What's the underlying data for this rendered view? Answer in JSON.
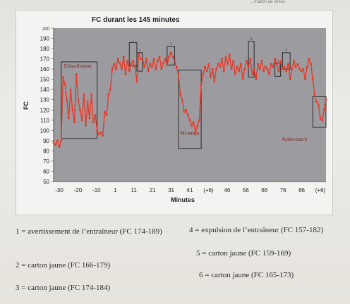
{
  "top_fragment": "…mation de stress",
  "chart_data": {
    "type": "line",
    "title": "FC durant les 145 minutes",
    "xlabel": "Minutes",
    "ylabel": "FC",
    "ylim": [
      50,
      200
    ],
    "yticks": [
      "200",
      "190",
      "180",
      "170",
      "160",
      "150",
      "140",
      "130",
      "120",
      "110",
      "100",
      "90",
      "80",
      "70",
      "60",
      "50"
    ],
    "xticks": [
      "-30",
      "-20",
      "-10",
      "1",
      "11",
      "21",
      "31",
      "41",
      "(+6)",
      "46",
      "56",
      "66",
      "76",
      "86",
      "(+6)"
    ],
    "series": [
      {
        "color": "#e63a2a",
        "x": [
          0,
          1,
          2,
          3,
          4,
          5,
          6,
          7,
          8,
          9,
          10,
          11,
          12,
          13,
          14,
          15,
          16,
          17,
          18,
          19,
          20,
          21,
          22,
          23,
          24,
          25,
          26,
          27,
          28,
          29,
          30,
          31,
          32,
          33,
          34,
          35,
          36,
          37,
          38,
          39,
          40,
          41,
          42,
          43,
          44,
          45,
          46,
          47,
          48,
          49,
          50,
          51,
          52,
          53,
          54,
          55,
          56,
          57,
          58,
          59,
          60,
          61,
          62,
          63,
          64,
          65,
          66,
          67,
          68,
          69,
          70,
          71,
          72,
          73,
          74,
          75,
          76,
          77,
          78,
          79,
          80,
          81,
          82,
          83,
          84,
          85,
          86,
          87,
          88,
          89,
          90,
          91,
          92,
          93,
          94,
          95,
          96,
          97,
          98,
          99,
          100,
          101,
          102,
          103,
          104,
          105,
          106,
          107,
          108,
          109,
          110,
          111,
          112,
          113,
          114,
          115,
          116,
          117,
          118,
          119,
          120,
          121,
          122,
          123,
          124,
          125,
          126,
          127,
          128,
          129,
          130,
          131,
          132,
          133,
          134,
          135,
          136,
          137,
          138,
          139,
          140,
          141,
          142,
          143,
          144
        ],
        "y": [
          88,
          86,
          90,
          84,
          90,
          152,
          145,
          130,
          112,
          140,
          120,
          108,
          155,
          130,
          120,
          110,
          135,
          105,
          128,
          112,
          135,
          108,
          115,
          100,
          96,
          98,
          95,
          118,
          115,
          135,
          140,
          160,
          165,
          160,
          170,
          166,
          160,
          172,
          155,
          168,
          158,
          165,
          168,
          162,
          148,
          175,
          170,
          170,
          162,
          170,
          158,
          165,
          162,
          170,
          160,
          168,
          172,
          160,
          166,
          170,
          164,
          172,
          176,
          172,
          168,
          162,
          155,
          135,
          130,
          118,
          120,
          115,
          110,
          105,
          108,
          98,
          104,
          110,
          145,
          155,
          162,
          158,
          165,
          152,
          160,
          148,
          160,
          165,
          162,
          170,
          158,
          172,
          165,
          174,
          160,
          168,
          155,
          162,
          158,
          165,
          150,
          160,
          168,
          162,
          170,
          155,
          160,
          150,
          165,
          160,
          168,
          158,
          162,
          160,
          155,
          165,
          162,
          170,
          165,
          158,
          168,
          160,
          162,
          158,
          165,
          150,
          160,
          168,
          162,
          165,
          160,
          158,
          160,
          150,
          162,
          170,
          165,
          150,
          135,
          128,
          125,
          112,
          110,
          120,
          130
        ]
      }
    ],
    "annotations": [
      {
        "label": "Echauffement",
        "x0": 4,
        "x1": 23,
        "y0": 92,
        "y1": 167
      },
      {
        "label": "Mi-temps",
        "x0": 66,
        "x1": 78,
        "y0": 82,
        "y1": 159
      },
      {
        "label": "Après-match",
        "x0": 137,
        "x1": 144,
        "y0": 103,
        "y1": 133
      },
      {
        "label": "1",
        "x0": 40,
        "x1": 44,
        "y0": 163,
        "y1": 186
      },
      {
        "label": "2",
        "x0": 44,
        "x1": 47,
        "y0": 158,
        "y1": 176
      },
      {
        "label": "3",
        "x0": 60,
        "x1": 64,
        "y0": 164,
        "y1": 182
      },
      {
        "label": "4",
        "x0": 103,
        "x1": 106,
        "y0": 152,
        "y1": 187
      },
      {
        "label": "5",
        "x0": 117,
        "x1": 120,
        "y0": 153,
        "y1": 166
      },
      {
        "label": "6",
        "x0": 121,
        "x1": 125,
        "y0": 160,
        "y1": 176
      }
    ]
  },
  "legend": [
    "1 = avertissement de l’entraîneur (FC 174-189)",
    "2 = carton jaune (FC 166-179)",
    "3 = carton jaune (FC 174-184)",
    "4 = expulsion de l’entraîneur (FC 157-182)",
    "5 = carton jaune (FC 159-169)",
    "6 = carton jaune (FC 165-173)"
  ]
}
